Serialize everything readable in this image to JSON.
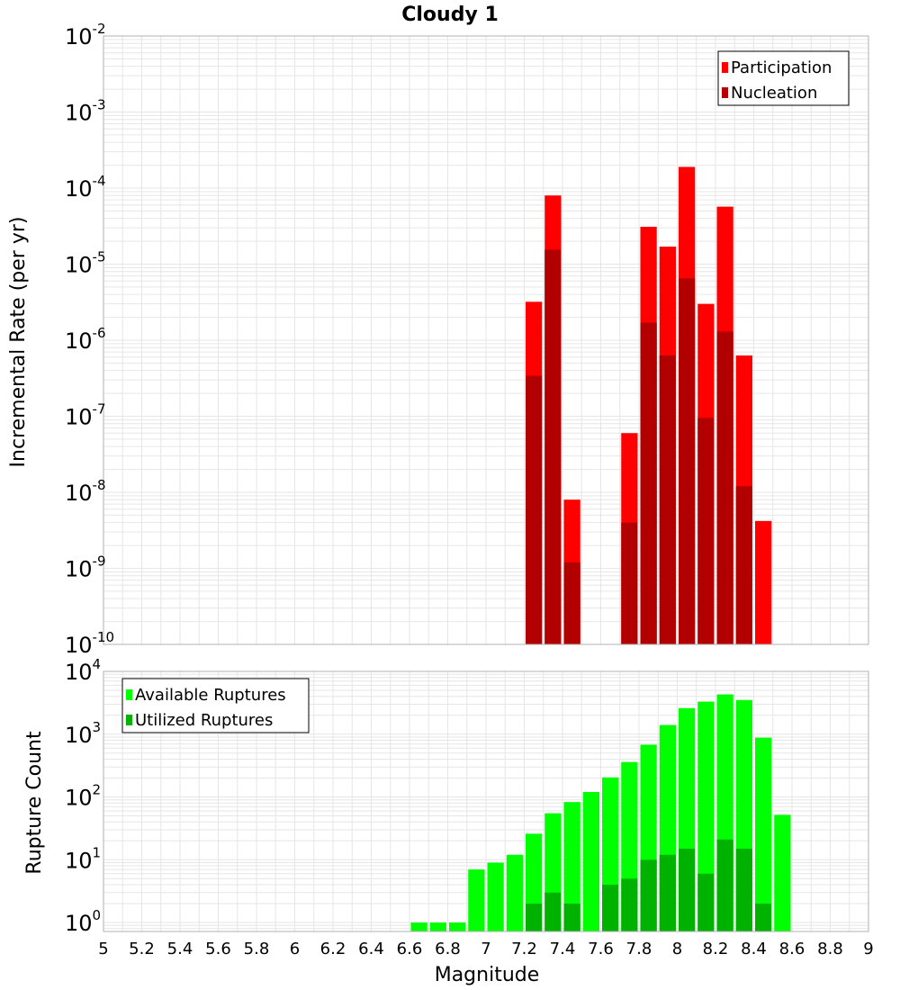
{
  "title": "Cloudy 1",
  "xlabel": "Magnitude",
  "colors": {
    "participation": "#ff0000",
    "nucleation": "#b20000",
    "available": "#00ff00",
    "utilized": "#00b200",
    "grid": "#e6e6e6",
    "frame": "#b0b0b0"
  },
  "chart_data": [
    {
      "type": "bar",
      "ylabel": "Incremental Rate (per yr)",
      "yscale": "log",
      "ylim": [
        1e-10,
        0.01
      ],
      "xlim": [
        5,
        9
      ],
      "bin_width": 0.1,
      "legend": [
        "Participation",
        "Nucleation"
      ],
      "legend_position": "top-right",
      "grid": true,
      "series": [
        {
          "name": "Participation",
          "x": [
            7.25,
            7.35,
            7.45,
            7.75,
            7.85,
            7.95,
            8.05,
            8.15,
            8.25,
            8.35,
            8.45
          ],
          "values": [
            3.2e-06,
            8e-05,
            8e-09,
            6e-08,
            3.1e-05,
            1.7e-05,
            0.00019,
            3e-06,
            5.7e-05,
            6.3e-07,
            4.2e-09
          ]
        },
        {
          "name": "Nucleation",
          "x": [
            7.25,
            7.35,
            7.45,
            7.75,
            7.85,
            7.95,
            8.05,
            8.15,
            8.25,
            8.35
          ],
          "values": [
            3.4e-07,
            1.55e-05,
            1.2e-09,
            4e-09,
            1.7e-06,
            6.3e-07,
            6.5e-06,
            9.5e-08,
            1.3e-06,
            1.2e-08
          ]
        }
      ],
      "y_ticks": [
        {
          "base": "10",
          "exp": "-2"
        },
        {
          "base": "10",
          "exp": "-3"
        },
        {
          "base": "10",
          "exp": "-4"
        },
        {
          "base": "10",
          "exp": "-5"
        },
        {
          "base": "10",
          "exp": "-6"
        },
        {
          "base": "10",
          "exp": "-7"
        },
        {
          "base": "10",
          "exp": "-8"
        },
        {
          "base": "10",
          "exp": "-9"
        },
        {
          "base": "10",
          "exp": "-10"
        }
      ]
    },
    {
      "type": "bar",
      "ylabel": "Rupture Count",
      "yscale": "log",
      "ylim": [
        0.72,
        10000
      ],
      "xlim": [
        5,
        9
      ],
      "bin_width": 0.1,
      "legend": [
        "Available Ruptures",
        "Utilized Ruptures"
      ],
      "legend_position": "top-left",
      "grid": true,
      "series": [
        {
          "name": "Available Ruptures",
          "x": [
            6.65,
            6.75,
            6.85,
            6.95,
            7.05,
            7.15,
            7.25,
            7.35,
            7.45,
            7.55,
            7.65,
            7.75,
            7.85,
            7.95,
            8.05,
            8.15,
            8.25,
            8.35,
            8.45,
            8.55
          ],
          "values": [
            1,
            1,
            1,
            7,
            9,
            12,
            26,
            55,
            83,
            120,
            205,
            360,
            680,
            1400,
            2600,
            3300,
            4300,
            3500,
            880,
            52
          ]
        },
        {
          "name": "Utilized Ruptures",
          "x": [
            7.25,
            7.35,
            7.45,
            7.65,
            7.75,
            7.85,
            7.95,
            8.05,
            8.15,
            8.25,
            8.35,
            8.45
          ],
          "values": [
            2,
            3,
            2,
            4,
            5,
            10,
            12,
            15,
            6,
            21,
            15,
            2
          ]
        }
      ],
      "y_ticks": [
        {
          "base": "10",
          "exp": "4"
        },
        {
          "base": "10",
          "exp": "3"
        },
        {
          "base": "10",
          "exp": "2"
        },
        {
          "base": "10",
          "exp": "1"
        },
        {
          "base": "10",
          "exp": "0"
        }
      ]
    }
  ],
  "x_ticks": [
    "5",
    "5.2",
    "5.4",
    "5.6",
    "5.8",
    "6",
    "6.2",
    "6.4",
    "6.6",
    "6.8",
    "7",
    "7.2",
    "7.4",
    "7.6",
    "7.8",
    "8",
    "8.2",
    "8.4",
    "8.6",
    "8.8",
    "9"
  ]
}
